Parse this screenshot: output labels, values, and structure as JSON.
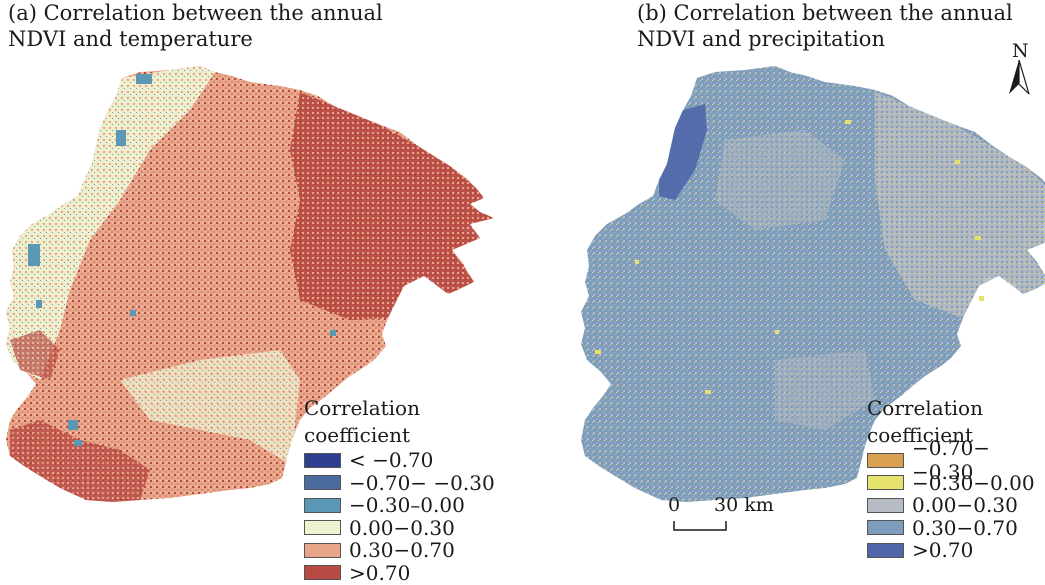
{
  "panel_a": {
    "title_line1": "(a) Correlation between the annual",
    "title_line2": "NDVI and temperature",
    "legend_heading_1": "Correlation",
    "legend_heading_2": "coefficient",
    "legend": [
      {
        "label": "< −0.70",
        "color": "#2e3f8f"
      },
      {
        "label": "−0.70− −0.30",
        "color": "#4a6b9e"
      },
      {
        "label": "−0.30–0.00",
        "color": "#5a98b5"
      },
      {
        "label": "0.00−0.30",
        "color": "#eef3d2"
      },
      {
        "label": "0.30−0.70",
        "color": "#e9a589"
      },
      {
        "label": ">0.70",
        "color": "#b84a44"
      }
    ]
  },
  "panel_b": {
    "title_line1": "(b) Correlation between the annual",
    "title_line2": "NDVI and precipitation",
    "legend_heading_1": "Correlation",
    "legend_heading_2": "coefficient",
    "legend": [
      {
        "label": "−0.70− −0.30",
        "color": "#d8a050"
      },
      {
        "label": "−0.30−0.00",
        "color": "#e6e26e"
      },
      {
        "label": "0.00−0.30",
        "color": "#b7bbc3"
      },
      {
        "label": "0.30−0.70",
        "color": "#7e9cbc"
      },
      {
        "label": ">0.70",
        "color": "#4f67a8"
      }
    ]
  },
  "scale_bar": {
    "start_label": "0",
    "end_label": "30 km"
  },
  "north_arrow": {
    "letter": "N",
    "icon": "north-arrow-icon"
  }
}
